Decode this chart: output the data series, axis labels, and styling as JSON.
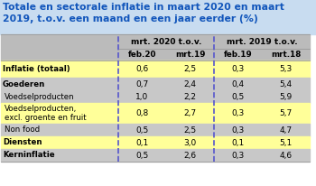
{
  "title_line1": "Totale en sectorale inflatie in maart 2020 en maart",
  "title_line2": "2019, t.o.v. een maand en een jaar eerder (%)",
  "col_headers_top": [
    "mrt. 2020 t.o.v.",
    "mrt. 2019 t.o.v."
  ],
  "col_headers_sub": [
    "feb.20",
    "mrt.19",
    "feb.19",
    "mrt.18"
  ],
  "rows": [
    {
      "label": "Inflatie (totaal)",
      "bold": true,
      "indent": false,
      "values": [
        "0,6",
        "2,5",
        "0,3",
        "5,3"
      ],
      "bg": "yellow"
    },
    {
      "label": "Goederen",
      "bold": true,
      "indent": false,
      "values": [
        "0,7",
        "2,4",
        "0,4",
        "5,4"
      ],
      "bg": "gray"
    },
    {
      "label": "Voedselproducten",
      "bold": false,
      "indent": true,
      "values": [
        "1,0",
        "2,2",
        "0,5",
        "5,9"
      ],
      "bg": "gray"
    },
    {
      "label": "Voedselproducten,\nexcl. groente en fruit",
      "bold": false,
      "indent": true,
      "values": [
        "0,8",
        "2,7",
        "0,3",
        "5,7"
      ],
      "bg": "yellow"
    },
    {
      "label": "Non food",
      "bold": false,
      "indent": true,
      "values": [
        "0,5",
        "2,5",
        "0,3",
        "4,7"
      ],
      "bg": "gray"
    },
    {
      "label": "Diensten",
      "bold": true,
      "indent": false,
      "values": [
        "0,1",
        "3,0",
        "0,1",
        "5,1"
      ],
      "bg": "yellow"
    },
    {
      "label": "Kerninflatie",
      "bold": true,
      "indent": false,
      "values": [
        "0,5",
        "2,6",
        "0,3",
        "4,6"
      ],
      "bg": "gray"
    }
  ],
  "title_color": "#1155BB",
  "title_bg": "#C8DCF0",
  "header_bg": "#BBBBBB",
  "yellow_bg": "#FFFF99",
  "gray_bg": "#C8C8C8",
  "divider_color": "#5555CC",
  "border_color": "#999999"
}
